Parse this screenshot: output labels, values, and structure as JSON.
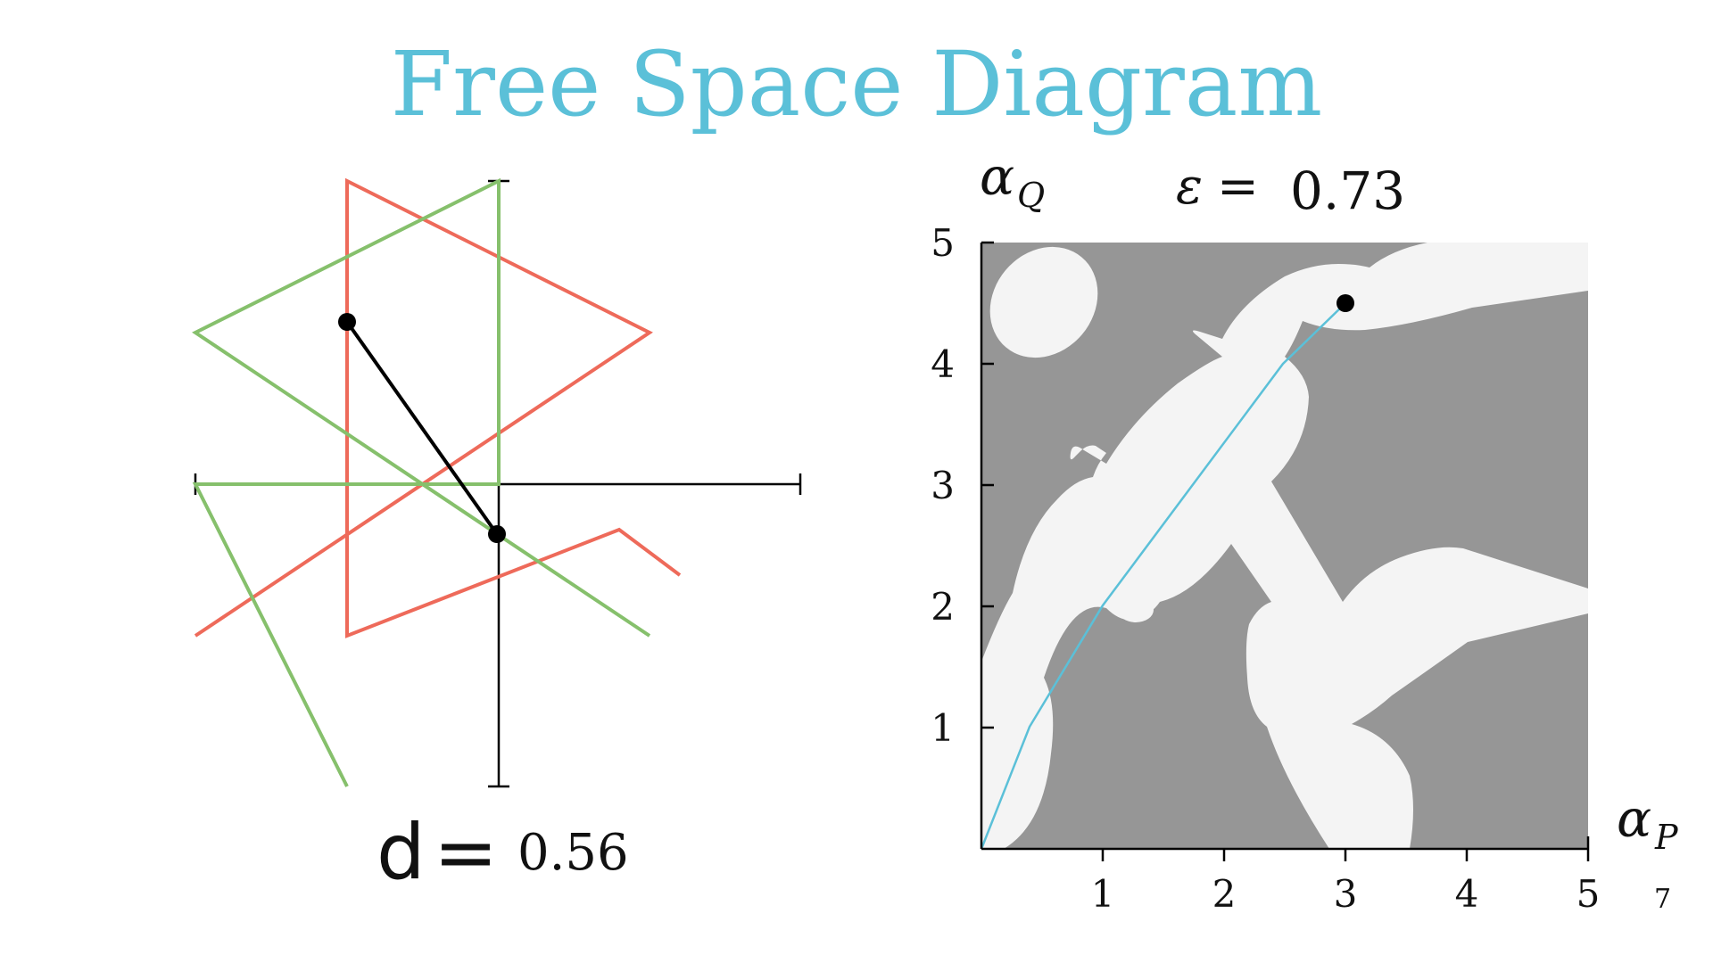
{
  "title": "Free Space Diagram",
  "left_panel": {
    "distance_symbol": "d",
    "distance_equals": "=",
    "distance_value": "0.56",
    "colors": {
      "curve_p": "#ee6a5a",
      "curve_q": "#86c06c",
      "leash": "#000000",
      "axes": "#000000"
    }
  },
  "right_panel": {
    "y_label_alpha": "α",
    "y_label_sub": "Q",
    "x_label_alpha": "α",
    "x_label_sub": "P",
    "epsilon_symbol": "ε",
    "epsilon_equals": "=",
    "epsilon_value": "0.73",
    "x_ticks": [
      "1",
      "2",
      "3",
      "4",
      "5"
    ],
    "y_ticks": [
      "1",
      "2",
      "3",
      "4",
      "5"
    ],
    "cursor_point": {
      "alpha_p": 3.0,
      "alpha_q": 4.5
    },
    "colors": {
      "blocked_region": "#969696",
      "free_region": "#f4f4f4",
      "path": "#5bc0d8"
    }
  },
  "page_number": "7"
}
